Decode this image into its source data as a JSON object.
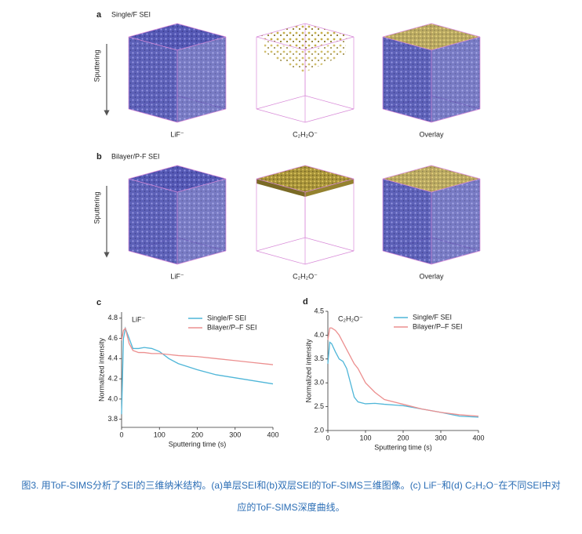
{
  "panel_a": {
    "letter": "a",
    "title": "Single/F SEI",
    "axis_label": "Sputtering",
    "labels": [
      "LiF⁻",
      "C₂H₂O⁻",
      "Overlay"
    ]
  },
  "panel_b": {
    "letter": "b",
    "title": "Bilayer/P-F SEI",
    "axis_label": "Sputtering",
    "labels": [
      "LiF⁻",
      "C₂H₂O⁻",
      "Overlay"
    ]
  },
  "chart_data": [
    {
      "type": "line",
      "letter": "c",
      "annotation": "LiF⁻",
      "xlabel": "Sputtering time (s)",
      "ylabel": "Normalized intensity",
      "x": [
        0,
        5,
        10,
        20,
        30,
        45,
        60,
        80,
        100,
        125,
        150,
        200,
        250,
        300,
        350,
        400
      ],
      "xlim": [
        0,
        400
      ],
      "xticks": [
        0,
        100,
        200,
        300,
        400
      ],
      "ylim": [
        3.72,
        4.86
      ],
      "yticks": [
        3.8,
        {
          "value": 4,
          "label": "4.0"
        },
        4.2,
        4.4,
        4.6,
        4.8
      ],
      "legend": "upper right",
      "series": [
        {
          "name": "Single/F SEI",
          "color": "#4fb6d8",
          "values": [
            3.85,
            4.6,
            4.7,
            4.6,
            4.5,
            4.5,
            4.51,
            4.5,
            4.47,
            4.4,
            4.35,
            4.29,
            4.24,
            4.21,
            4.18,
            4.15
          ]
        },
        {
          "name": "Bilayer/P–F SEI",
          "color": "#ec8f8f",
          "values": [
            4.58,
            4.68,
            4.7,
            4.55,
            4.48,
            4.46,
            4.46,
            4.45,
            4.45,
            4.44,
            4.43,
            4.42,
            4.4,
            4.38,
            4.36,
            4.34
          ]
        }
      ]
    },
    {
      "type": "line",
      "letter": "d",
      "annotation": "C₂H₂O⁻",
      "xlabel": "Sputtering time (s)",
      "ylabel": "Normalized intensity",
      "x": [
        0,
        5,
        10,
        20,
        30,
        40,
        50,
        60,
        70,
        80,
        100,
        125,
        150,
        200,
        250,
        300,
        350,
        400
      ],
      "xlim": [
        0,
        400
      ],
      "xticks": [
        0,
        100,
        200,
        300,
        400
      ],
      "ylim": [
        2,
        4.5
      ],
      "yticks": [
        {
          "value": 2,
          "label": "2.0"
        },
        2.5,
        {
          "value": 3,
          "label": "3.0"
        },
        3.5,
        {
          "value": 4,
          "label": "4.0"
        },
        4.5
      ],
      "legend": "upper right",
      "series": [
        {
          "name": "Single/F SEI",
          "color": "#4fb6d8",
          "values": [
            3.4,
            3.85,
            3.82,
            3.65,
            3.5,
            3.45,
            3.3,
            3.0,
            2.7,
            2.6,
            2.56,
            2.57,
            2.55,
            2.52,
            2.45,
            2.38,
            2.3,
            2.28
          ]
        },
        {
          "name": "Bilayer/P–F SEI",
          "color": "#ec8f8f",
          "values": [
            3.9,
            4.15,
            4.15,
            4.1,
            4.0,
            3.85,
            3.7,
            3.55,
            3.4,
            3.3,
            3.0,
            2.8,
            2.65,
            2.55,
            2.45,
            2.38,
            2.33,
            2.3
          ]
        }
      ]
    }
  ],
  "caption": [
    "图3. 用ToF-SIMS分析了SEI的三维纳米结构。(a)单层SEI和(b)双层SEI的ToF-SIMS三维图像。(c) LiF⁻和(d) C₂H₂O⁻在不同SEI中对",
    "应的ToF-SIMS深度曲线。"
  ]
}
